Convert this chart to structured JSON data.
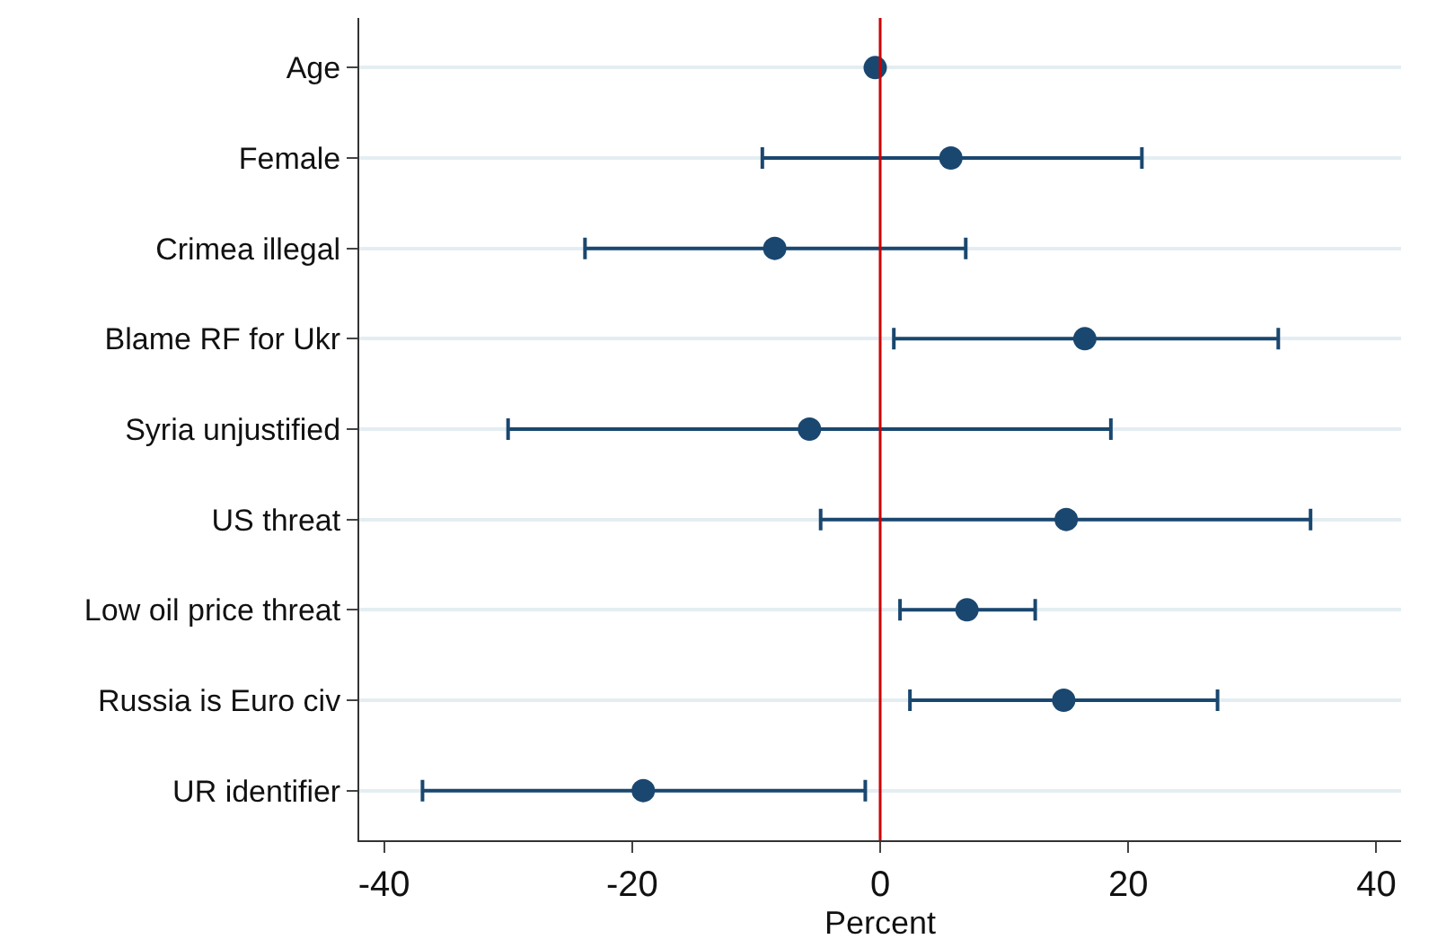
{
  "chart_data": {
    "type": "scatter",
    "orientation": "horizontal",
    "xlabel": "Percent",
    "categories": [
      "Age",
      "Female",
      "Crimea illegal",
      "Blame RF for Ukr",
      "Syria unjustified",
      "US threat",
      "Low oil price threat",
      "Russia is Euro civ",
      "UR identifier"
    ],
    "series": [
      {
        "color": "#1a476f",
        "values": [
          -0.4,
          5.7,
          -8.5,
          16.5,
          -5.7,
          15.0,
          7.0,
          14.8,
          -19.1
        ],
        "errors": [
          null,
          [
            -9.5,
            21.1
          ],
          [
            -23.8,
            6.9
          ],
          [
            1.1,
            32.1
          ],
          [
            -30.0,
            18.6
          ],
          [
            -4.8,
            34.7
          ],
          [
            1.6,
            12.5
          ],
          [
            2.4,
            27.2
          ],
          [
            -36.9,
            -1.2
          ]
        ]
      }
    ],
    "xlim": [
      -42,
      42
    ],
    "xticks": [
      -40,
      -20,
      0,
      20,
      40
    ],
    "grid": "y",
    "marker": "circle",
    "ref_lines": [
      {
        "axis": "x",
        "value": 0,
        "color": "#cc0000"
      }
    ]
  }
}
